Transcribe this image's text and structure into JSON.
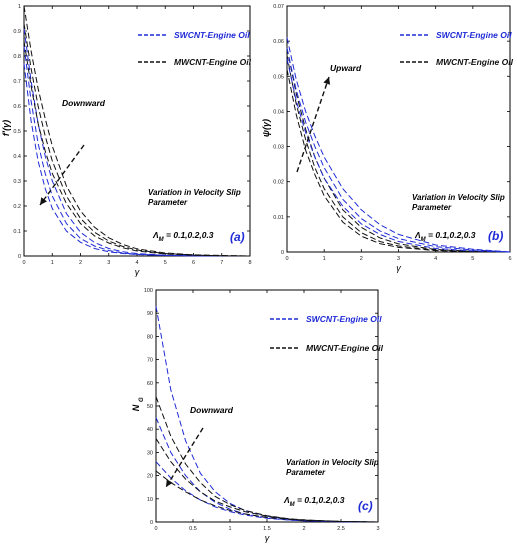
{
  "colors": {
    "sw": "#1f2bd6",
    "mw": "#111111",
    "arrow": "#111111",
    "frame": "#000000"
  },
  "chart_data": [
    {
      "type": "line",
      "panel_label": "(a)",
      "ylabel": "f'(γ)",
      "xlabel": "γ",
      "xlim": [
        0,
        8
      ],
      "ylim": [
        0,
        1
      ],
      "xticks": [
        0,
        1,
        2,
        3,
        4,
        5,
        6,
        7,
        8
      ],
      "yticks": [
        0,
        0.1,
        0.2,
        0.3,
        0.4,
        0.5,
        0.6,
        0.7,
        0.8,
        0.9,
        1
      ],
      "grid": false,
      "legend": [
        {
          "label": "SWCNT-Engine Oil",
          "series_key": "sw"
        },
        {
          "label": "MWCNT-Engine Oil",
          "series_key": "mw"
        }
      ],
      "legend_position": "top-right",
      "annotations": {
        "arrow_text": "Downward",
        "variation_line1": "Variation in Velocity Slip",
        "variation_line2": "Parameter",
        "param_symbol": "Λ",
        "param_sub": "M",
        "param_values": " = 0.1,0.2,0.3"
      },
      "series": [
        {
          "group": "sw",
          "x": [
            0,
            0.25,
            0.5,
            0.75,
            1,
            1.5,
            2,
            2.5,
            3,
            3.5,
            4,
            5,
            6,
            7,
            8
          ],
          "y": [
            0.77,
            0.54,
            0.38,
            0.27,
            0.19,
            0.1,
            0.055,
            0.03,
            0.017,
            0.01,
            0.006,
            0.002,
            0.001,
            0,
            0
          ]
        },
        {
          "group": "sw",
          "x": [
            0,
            0.25,
            0.5,
            0.75,
            1,
            1.5,
            2,
            2.5,
            3,
            3.5,
            4,
            5,
            6,
            7,
            8
          ],
          "y": [
            0.84,
            0.62,
            0.45,
            0.33,
            0.24,
            0.13,
            0.07,
            0.04,
            0.022,
            0.012,
            0.007,
            0.003,
            0.001,
            0,
            0
          ]
        },
        {
          "group": "sw",
          "x": [
            0,
            0.25,
            0.5,
            0.75,
            1,
            1.5,
            2,
            2.5,
            3,
            3.5,
            4,
            5,
            6,
            7,
            8
          ],
          "y": [
            0.91,
            0.7,
            0.53,
            0.4,
            0.3,
            0.17,
            0.095,
            0.054,
            0.03,
            0.017,
            0.01,
            0.003,
            0.001,
            0,
            0
          ]
        },
        {
          "group": "mw",
          "x": [
            0,
            0.25,
            0.5,
            0.75,
            1,
            1.5,
            2,
            2.5,
            3,
            3.5,
            4,
            5,
            6,
            7,
            8
          ],
          "y": [
            0.86,
            0.68,
            0.53,
            0.42,
            0.33,
            0.21,
            0.13,
            0.08,
            0.052,
            0.033,
            0.02,
            0.008,
            0.003,
            0.001,
            0
          ]
        },
        {
          "group": "mw",
          "x": [
            0,
            0.25,
            0.5,
            0.75,
            1,
            1.5,
            2,
            2.5,
            3,
            3.5,
            4,
            5,
            6,
            7,
            8
          ],
          "y": [
            0.93,
            0.75,
            0.6,
            0.48,
            0.38,
            0.24,
            0.15,
            0.095,
            0.06,
            0.038,
            0.024,
            0.01,
            0.004,
            0.001,
            0
          ]
        },
        {
          "group": "mw",
          "x": [
            0,
            0.25,
            0.5,
            0.75,
            1,
            1.5,
            2,
            2.5,
            3,
            3.5,
            4,
            5,
            6,
            7,
            8
          ],
          "y": [
            1,
            0.82,
            0.67,
            0.55,
            0.44,
            0.28,
            0.18,
            0.115,
            0.073,
            0.046,
            0.029,
            0.012,
            0.005,
            0.002,
            0
          ]
        }
      ]
    },
    {
      "type": "line",
      "panel_label": "(b)",
      "ylabel": "ψ(γ)",
      "xlabel": "γ",
      "xlim": [
        0,
        6
      ],
      "ylim": [
        0,
        0.07
      ],
      "xticks": [
        0,
        1,
        2,
        3,
        4,
        5,
        6
      ],
      "yticks": [
        0,
        0.01,
        0.02,
        0.03,
        0.04,
        0.05,
        0.06,
        0.07
      ],
      "grid": false,
      "legend": [
        {
          "label": "SWCNT-Engine Oil",
          "series_key": "sw"
        },
        {
          "label": "MWCNT-Engine Oil",
          "series_key": "mw"
        }
      ],
      "legend_position": "top-right",
      "annotations": {
        "arrow_text": "Upward",
        "variation_line1": "Variation in Velocity Slip",
        "variation_line2": "Parameter",
        "param_symbol": "Λ",
        "param_sub": "M",
        "param_values": " = 0.1,0.2,0.3"
      },
      "series": [
        {
          "group": "mw",
          "x": [
            0,
            0.25,
            0.5,
            0.75,
            1,
            1.5,
            2,
            2.5,
            3,
            4,
            5,
            6
          ],
          "y": [
            0.052,
            0.039,
            0.029,
            0.022,
            0.016,
            0.0085,
            0.0045,
            0.0024,
            0.0013,
            0.0004,
            0.0001,
            0
          ]
        },
        {
          "group": "mw",
          "x": [
            0,
            0.25,
            0.5,
            0.75,
            1,
            1.5,
            2,
            2.5,
            3,
            4,
            5,
            6
          ],
          "y": [
            0.056,
            0.042,
            0.032,
            0.024,
            0.018,
            0.01,
            0.0055,
            0.003,
            0.0017,
            0.0005,
            0.0001,
            0
          ]
        },
        {
          "group": "mw",
          "x": [
            0,
            0.25,
            0.5,
            0.75,
            1,
            1.5,
            2,
            2.5,
            3,
            4,
            5,
            6
          ],
          "y": [
            0.058,
            0.045,
            0.035,
            0.027,
            0.021,
            0.012,
            0.007,
            0.004,
            0.0023,
            0.0007,
            0.0002,
            0
          ]
        },
        {
          "group": "sw",
          "x": [
            0,
            0.25,
            0.5,
            0.75,
            1,
            1.5,
            2,
            2.5,
            3,
            4,
            5,
            6
          ],
          "y": [
            0.055,
            0.043,
            0.034,
            0.027,
            0.021,
            0.013,
            0.008,
            0.005,
            0.003,
            0.001,
            0.0003,
            0
          ]
        },
        {
          "group": "sw",
          "x": [
            0,
            0.25,
            0.5,
            0.75,
            1,
            1.5,
            2,
            2.5,
            3,
            4,
            5,
            6
          ],
          "y": [
            0.058,
            0.046,
            0.037,
            0.03,
            0.024,
            0.015,
            0.0095,
            0.006,
            0.0038,
            0.0015,
            0.0006,
            0
          ]
        },
        {
          "group": "sw",
          "x": [
            0,
            0.25,
            0.5,
            0.75,
            1,
            1.5,
            2,
            2.5,
            3,
            4,
            5,
            6
          ],
          "y": [
            0.061,
            0.049,
            0.04,
            0.033,
            0.027,
            0.018,
            0.012,
            0.0078,
            0.005,
            0.002,
            0.0008,
            0
          ]
        }
      ]
    },
    {
      "type": "line",
      "panel_label": "(c)",
      "ylabel": "N",
      "ylabel_sub": "G",
      "xlabel": "γ",
      "xlim": [
        0,
        3
      ],
      "ylim": [
        0,
        100
      ],
      "xticks": [
        0,
        0.5,
        1,
        1.5,
        2,
        2.5,
        3
      ],
      "yticks": [
        0,
        10,
        20,
        30,
        40,
        50,
        60,
        70,
        80,
        90,
        100
      ],
      "grid": false,
      "legend": [
        {
          "label": "SWCNT-Engine Oil",
          "series_key": "sw"
        },
        {
          "label": "MWCNT-Engine Oil",
          "series_key": "mw"
        }
      ],
      "legend_position": "top-right",
      "annotations": {
        "arrow_text": "Downward",
        "variation_line1": "Variation in Velocity Slip",
        "variation_line2": "Parameter",
        "param_symbol": "Λ",
        "param_sub": "M",
        "param_values": " = 0.1,0.2,0.3"
      },
      "series": [
        {
          "group": "sw",
          "x": [
            0,
            0.2,
            0.4,
            0.6,
            0.8,
            1,
            1.2,
            1.5,
            1.8,
            2,
            2.5,
            3
          ],
          "y": [
            93,
            57,
            35,
            21,
            13,
            8,
            5,
            2.5,
            1.2,
            0.7,
            0.2,
            0
          ]
        },
        {
          "group": "sw",
          "x": [
            0,
            0.2,
            0.4,
            0.6,
            0.8,
            1,
            1.2,
            1.5,
            1.8,
            2,
            2.5,
            3
          ],
          "y": [
            45,
            30,
            20,
            13,
            8.5,
            5.5,
            3.5,
            1.8,
            0.9,
            0.5,
            0.1,
            0
          ]
        },
        {
          "group": "sw",
          "x": [
            0,
            0.2,
            0.4,
            0.6,
            0.8,
            1,
            1.2,
            1.5,
            1.8,
            2,
            2.5,
            3
          ],
          "y": [
            26,
            19,
            13.5,
            9.5,
            6.5,
            4.5,
            3,
            1.6,
            0.8,
            0.5,
            0.1,
            0
          ]
        },
        {
          "group": "mw",
          "x": [
            0,
            0.2,
            0.4,
            0.6,
            0.8,
            1,
            1.2,
            1.5,
            1.8,
            2,
            2.5,
            3
          ],
          "y": [
            54,
            37,
            25,
            17,
            11,
            7.5,
            5,
            2.7,
            1.4,
            0.9,
            0.2,
            0
          ]
        },
        {
          "group": "mw",
          "x": [
            0,
            0.2,
            0.4,
            0.6,
            0.8,
            1,
            1.2,
            1.5,
            1.8,
            2,
            2.5,
            3
          ],
          "y": [
            36,
            26,
            18.5,
            13,
            9,
            6.5,
            4.5,
            2.5,
            1.3,
            0.8,
            0.2,
            0
          ]
        },
        {
          "group": "mw",
          "x": [
            0,
            0.2,
            0.4,
            0.6,
            0.8,
            1,
            1.2,
            1.5,
            1.8,
            2,
            2.5,
            3
          ],
          "y": [
            22,
            17,
            13,
            9.5,
            7,
            5,
            3.5,
            2,
            1.1,
            0.7,
            0.2,
            0
          ]
        }
      ]
    }
  ]
}
